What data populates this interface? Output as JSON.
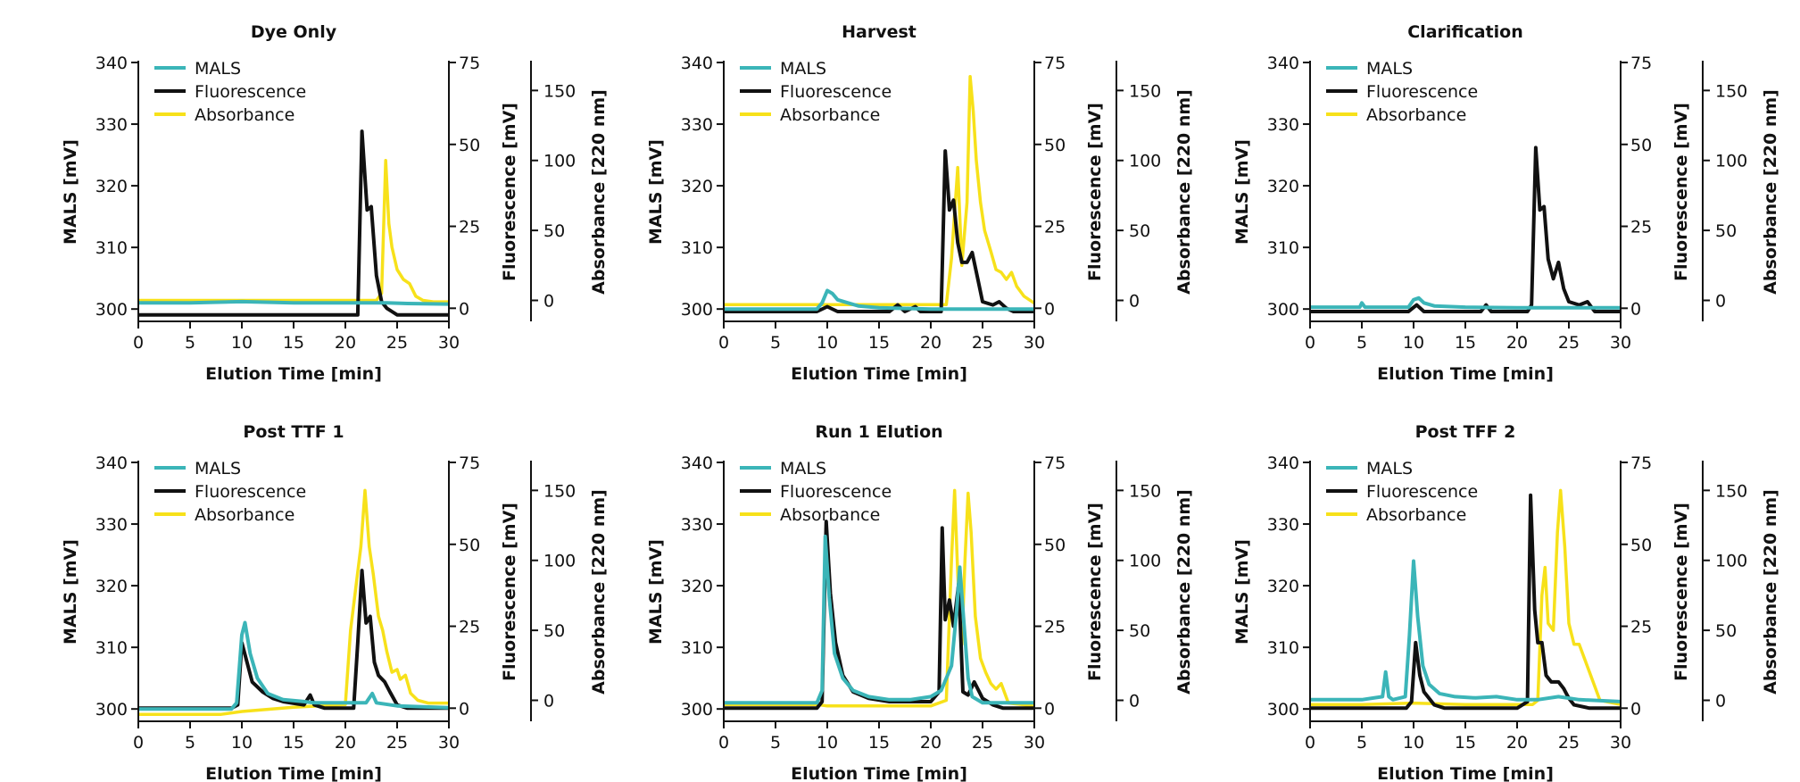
{
  "colors": {
    "mals": "#3bb5b8",
    "fluorescence": "#111111",
    "absorbance": "#f7e11a"
  },
  "chart_data": [
    {
      "type": "line",
      "title": "Dye Only",
      "xlabel": "Elution Time [min]",
      "ylabel": "MALS [mV]",
      "y2label": "Fluorescence [mV]",
      "y3label": "Absorbance [220 nm]",
      "xlim": [
        0,
        30
      ],
      "ylim": [
        298,
        340
      ],
      "y2lim": [
        -4,
        75
      ],
      "y3lim": [
        -15,
        170
      ],
      "xticks": [
        "0",
        "5",
        "10",
        "15",
        "20",
        "25",
        "30"
      ],
      "yticks": [
        "300",
        "310",
        "320",
        "330",
        "340"
      ],
      "y2ticks": [
        "0",
        "25",
        "50",
        "75"
      ],
      "y3ticks": [
        "0",
        "50",
        "100",
        "150"
      ],
      "legend": [
        "MALS",
        "Fluorescence",
        "Absorbance"
      ],
      "legend_position": "top-left",
      "series": [
        {
          "name": "MALS",
          "axis": "mals",
          "x": [
            0,
            5,
            10,
            15,
            20,
            21,
            22,
            24,
            26,
            30
          ],
          "y": [
            301,
            301,
            301.2,
            301,
            301,
            301,
            301,
            301,
            300.9,
            300.8
          ]
        },
        {
          "name": "Fluorescence",
          "axis": "fluorescence",
          "x": [
            0,
            5,
            10,
            15,
            20,
            21.2,
            21.6,
            22.1,
            22.5,
            23,
            23.5,
            24,
            24.5,
            25,
            27,
            30
          ],
          "y": [
            -2,
            -2,
            -2,
            -2,
            -2,
            -2,
            54,
            30,
            31,
            10,
            2,
            0,
            -1,
            -2,
            -2,
            -2
          ]
        },
        {
          "name": "Absorbance",
          "axis": "absorbance",
          "x": [
            0,
            10,
            20,
            23,
            23.5,
            23.9,
            24.2,
            24.5,
            25,
            25.6,
            26.2,
            26.8,
            27.5,
            28.5,
            30
          ],
          "y": [
            0,
            0,
            0,
            0,
            5,
            100,
            55,
            38,
            22,
            15,
            12,
            3,
            0,
            -1,
            -1
          ]
        }
      ]
    },
    {
      "type": "line",
      "title": "Harvest",
      "xlabel": "Elution Time [min]",
      "ylabel": "MALS [mV]",
      "y2label": "Fluorescence [mV]",
      "y3label": "Absorbance [220 nm]",
      "xlim": [
        0,
        30
      ],
      "ylim": [
        298,
        340
      ],
      "y2lim": [
        -4,
        75
      ],
      "y3lim": [
        -15,
        170
      ],
      "xticks": [
        "0",
        "5",
        "10",
        "15",
        "20",
        "25",
        "30"
      ],
      "yticks": [
        "300",
        "310",
        "320",
        "330",
        "340"
      ],
      "y2ticks": [
        "0",
        "25",
        "50",
        "75"
      ],
      "y3ticks": [
        "0",
        "50",
        "100",
        "150"
      ],
      "legend": [
        "MALS",
        "Fluorescence",
        "Absorbance"
      ],
      "legend_position": "top-left",
      "series": [
        {
          "name": "MALS",
          "axis": "mals",
          "x": [
            0,
            5,
            9,
            9.5,
            10,
            10.5,
            11,
            12,
            13,
            15,
            20,
            25,
            30
          ],
          "y": [
            300,
            300,
            300,
            301,
            303,
            302.5,
            301.5,
            301,
            300.5,
            300.2,
            300,
            300,
            300
          ]
        },
        {
          "name": "Fluorescence",
          "axis": "fluorescence",
          "x": [
            0,
            9,
            10,
            11,
            12,
            16,
            16.8,
            17.5,
            18.5,
            19,
            20,
            21,
            21.4,
            21.8,
            22.2,
            22.6,
            23,
            23.5,
            24,
            24.6,
            25,
            26,
            26.6,
            27.3,
            28,
            30
          ],
          "y": [
            -1,
            -1,
            0.5,
            -1,
            -1,
            -1,
            1,
            -1,
            0.5,
            -1,
            -1,
            -1,
            48,
            30,
            33,
            20,
            14,
            14,
            17,
            8,
            2,
            1,
            2,
            0,
            -1,
            -1
          ]
        },
        {
          "name": "Absorbance",
          "axis": "absorbance",
          "x": [
            0,
            10,
            20,
            21.5,
            22,
            22.6,
            23,
            23.5,
            23.8,
            24.1,
            24.4,
            24.8,
            25.2,
            25.8,
            26.3,
            26.8,
            27.3,
            27.8,
            28.3,
            29,
            30
          ],
          "y": [
            -3,
            -3,
            -3,
            -3,
            30,
            95,
            25,
            70,
            160,
            135,
            100,
            70,
            50,
            35,
            22,
            20,
            15,
            20,
            10,
            3,
            -2
          ]
        }
      ]
    },
    {
      "type": "line",
      "title": "Clarification",
      "xlabel": "Elution Time [min]",
      "ylabel": "MALS [mV]",
      "y2label": "Fluorescence [mV]",
      "y3label": "Absorbance [220 nm]",
      "xlim": [
        0,
        30
      ],
      "ylim": [
        298,
        340
      ],
      "y2lim": [
        -4,
        75
      ],
      "y3lim": [
        -15,
        170
      ],
      "xticks": [
        "0",
        "5",
        "10",
        "15",
        "20",
        "25",
        "30"
      ],
      "yticks": [
        "300",
        "310",
        "320",
        "330",
        "340"
      ],
      "y2ticks": [
        "0",
        "25",
        "50",
        "75"
      ],
      "y3ticks": [
        "0",
        "50",
        "100",
        "150"
      ],
      "legend": [
        "MALS",
        "Fluorescence",
        "Absorbance"
      ],
      "legend_position": "top-left",
      "series": [
        {
          "name": "MALS",
          "axis": "mals",
          "x": [
            0,
            4.8,
            5,
            5.3,
            9.5,
            10,
            10.5,
            11,
            12,
            15,
            20,
            25,
            30
          ],
          "y": [
            300.3,
            300.3,
            301,
            300.3,
            300.3,
            301.5,
            301.8,
            301,
            300.5,
            300.3,
            300.2,
            300.2,
            300.2
          ]
        },
        {
          "name": "Fluorescence",
          "axis": "fluorescence",
          "x": [
            0,
            9.5,
            10.3,
            11,
            16.5,
            17,
            17.5,
            21,
            21.4,
            21.8,
            22.2,
            22.6,
            23,
            23.5,
            24,
            24.5,
            25,
            26,
            26.8,
            27.5,
            30
          ],
          "y": [
            -1,
            -1,
            1,
            -1,
            -1,
            1,
            -1,
            -1,
            1,
            49,
            30,
            31,
            15,
            9,
            14,
            6,
            2,
            1,
            2,
            -1,
            -1
          ]
        }
      ]
    },
    {
      "type": "line",
      "title": "Post TTF 1",
      "xlabel": "Elution Time [min]",
      "ylabel": "MALS [mV]",
      "y2label": "Fluorescence [mV]",
      "y3label": "Absorbance [220 nm]",
      "xlim": [
        0,
        30
      ],
      "ylim": [
        298,
        340
      ],
      "y2lim": [
        -4,
        75
      ],
      "y3lim": [
        -15,
        170
      ],
      "xticks": [
        "0",
        "5",
        "10",
        "15",
        "20",
        "25",
        "30"
      ],
      "yticks": [
        "300",
        "310",
        "320",
        "330",
        "340"
      ],
      "y2ticks": [
        "0",
        "25",
        "50",
        "75"
      ],
      "y3ticks": [
        "0",
        "50",
        "100",
        "150"
      ],
      "legend": [
        "MALS",
        "Fluorescence",
        "Absorbance"
      ],
      "legend_position": "top-left",
      "series": [
        {
          "name": "MALS",
          "axis": "mals",
          "x": [
            0,
            5,
            9,
            9.5,
            10,
            10.3,
            10.8,
            11.5,
            12.5,
            14,
            16,
            17,
            20,
            22,
            22.6,
            23,
            25,
            30
          ],
          "y": [
            300,
            300,
            300,
            301,
            312,
            314,
            309,
            305,
            302.5,
            301.5,
            301.2,
            301,
            301,
            301,
            302.5,
            301,
            300.5,
            300.2
          ]
        },
        {
          "name": "Fluorescence",
          "axis": "fluorescence",
          "x": [
            0,
            9,
            9.6,
            10,
            10.5,
            11,
            12,
            13,
            14,
            16,
            16.6,
            17,
            18,
            20,
            20.8,
            21.2,
            21.6,
            22,
            22.4,
            22.8,
            23.2,
            23.8,
            24.3,
            25,
            26,
            30
          ],
          "y": [
            0,
            0,
            1,
            20,
            14,
            8,
            5,
            3,
            2,
            1,
            4,
            1,
            0,
            0,
            0,
            20,
            42,
            26,
            28,
            14,
            10,
            8,
            5,
            1,
            0,
            0
          ]
        },
        {
          "name": "Absorbance",
          "axis": "absorbance",
          "x": [
            0,
            8,
            10,
            15,
            20,
            20.5,
            21,
            21.5,
            21.9,
            22.3,
            22.7,
            23.2,
            23.6,
            24,
            24.5,
            25,
            25.3,
            25.8,
            26.3,
            27,
            28,
            30
          ],
          "y": [
            -10,
            -10,
            -8,
            -5,
            -3,
            50,
            80,
            110,
            150,
            110,
            90,
            60,
            50,
            35,
            20,
            22,
            15,
            18,
            5,
            0,
            -2,
            -2
          ]
        }
      ]
    },
    {
      "type": "line",
      "title": "Run 1 Elution",
      "xlabel": "Elution Time [min]",
      "ylabel": "MALS [mV]",
      "y2label": "Fluorescence [mV]",
      "y3label": "Absorbance [220 nm]",
      "xlim": [
        0,
        30
      ],
      "ylim": [
        298,
        340
      ],
      "y2lim": [
        -4,
        75
      ],
      "y3lim": [
        -15,
        170
      ],
      "xticks": [
        "0",
        "5",
        "10",
        "15",
        "20",
        "25",
        "30"
      ],
      "yticks": [
        "300",
        "310",
        "320",
        "330",
        "340"
      ],
      "y2ticks": [
        "0",
        "25",
        "50",
        "75"
      ],
      "y3ticks": [
        "0",
        "50",
        "100",
        "150"
      ],
      "legend": [
        "MALS",
        "Fluorescence",
        "Absorbance"
      ],
      "legend_position": "top-left",
      "series": [
        {
          "name": "MALS",
          "axis": "mals",
          "x": [
            0,
            5,
            9,
            9.5,
            9.8,
            10.2,
            10.7,
            11.5,
            12.5,
            14,
            16,
            18,
            20,
            21,
            22,
            22.5,
            22.8,
            23.2,
            23.6,
            24,
            25,
            27,
            30
          ],
          "y": [
            301,
            301,
            301,
            303,
            328,
            318,
            309,
            305,
            303,
            302,
            301.5,
            301.5,
            302,
            303,
            307,
            316,
            323,
            314,
            305,
            302,
            301,
            301,
            301
          ]
        },
        {
          "name": "Fluorescence",
          "axis": "fluorescence",
          "x": [
            0,
            9,
            9.5,
            9.9,
            10.3,
            10.8,
            11.5,
            12.5,
            14,
            16,
            18,
            20,
            20.8,
            21.1,
            21.4,
            21.8,
            22.2,
            22.7,
            23.1,
            23.6,
            24.2,
            25,
            26,
            27,
            30
          ],
          "y": [
            0,
            0,
            2,
            57,
            35,
            20,
            10,
            5,
            3,
            2,
            2,
            2,
            5,
            55,
            27,
            33,
            25,
            38,
            5,
            4,
            8,
            3,
            1,
            0,
            0
          ]
        },
        {
          "name": "Absorbance",
          "axis": "absorbance",
          "x": [
            0,
            9,
            10,
            15,
            20,
            21.5,
            22,
            22.3,
            22.6,
            23,
            23.3,
            23.6,
            23.9,
            24.3,
            24.8,
            25.3,
            25.8,
            26.3,
            26.8,
            27.5,
            30
          ],
          "y": [
            -3,
            -3,
            -4,
            -4,
            -4,
            0,
            100,
            150,
            90,
            40,
            100,
            148,
            120,
            60,
            30,
            20,
            12,
            8,
            12,
            -2,
            -4
          ]
        }
      ]
    },
    {
      "type": "line",
      "title": "Post TFF 2",
      "xlabel": "Elution Time [min]",
      "ylabel": "MALS [mV]",
      "y2label": "Fluorescence [mV]",
      "y3label": "Absorbance [220 nm]",
      "xlim": [
        0,
        30
      ],
      "ylim": [
        298,
        340
      ],
      "y2lim": [
        -4,
        75
      ],
      "y3lim": [
        -15,
        170
      ],
      "xticks": [
        "0",
        "5",
        "10",
        "15",
        "20",
        "25",
        "30"
      ],
      "yticks": [
        "300",
        "310",
        "320",
        "330",
        "340"
      ],
      "y2ticks": [
        "0",
        "25",
        "50",
        "75"
      ],
      "y3ticks": [
        "0",
        "50",
        "100",
        "150"
      ],
      "legend": [
        "MALS",
        "Fluorescence",
        "Absorbance"
      ],
      "legend_position": "top-left",
      "series": [
        {
          "name": "MALS",
          "axis": "mals",
          "x": [
            0,
            5,
            7,
            7.3,
            7.6,
            8,
            9.2,
            9.6,
            10,
            10.4,
            10.9,
            11.5,
            12.5,
            14,
            16,
            18,
            20,
            22,
            24,
            26,
            30
          ],
          "y": [
            301.5,
            301.5,
            302,
            306,
            302,
            301.5,
            302,
            312,
            324,
            315,
            307,
            304,
            302.5,
            302,
            301.8,
            302,
            301.5,
            301.5,
            302,
            301.5,
            301.2
          ]
        },
        {
          "name": "Fluorescence",
          "axis": "fluorescence",
          "x": [
            0,
            9.3,
            9.8,
            10.2,
            10.6,
            11,
            12,
            13,
            15,
            20,
            21,
            21.3,
            21.7,
            22,
            22.4,
            22.8,
            23.3,
            24,
            24.5,
            25,
            25.5,
            27,
            30
          ],
          "y": [
            0,
            0,
            2,
            20,
            10,
            5,
            1,
            0,
            0,
            0,
            2,
            65,
            30,
            20,
            20,
            10,
            8,
            8,
            6,
            3,
            1,
            0,
            0
          ]
        },
        {
          "name": "Absorbance",
          "axis": "absorbance",
          "x": [
            0,
            5,
            10,
            15,
            20,
            21.5,
            22,
            22.4,
            22.7,
            23,
            23.5,
            23.9,
            24.2,
            24.6,
            25,
            25.5,
            26,
            26.5,
            27,
            28,
            30
          ],
          "y": [
            -3,
            -3,
            -2,
            -3,
            -3,
            -3,
            0,
            75,
            95,
            55,
            50,
            120,
            150,
            110,
            55,
            40,
            40,
            30,
            20,
            0,
            -3
          ]
        }
      ]
    }
  ]
}
